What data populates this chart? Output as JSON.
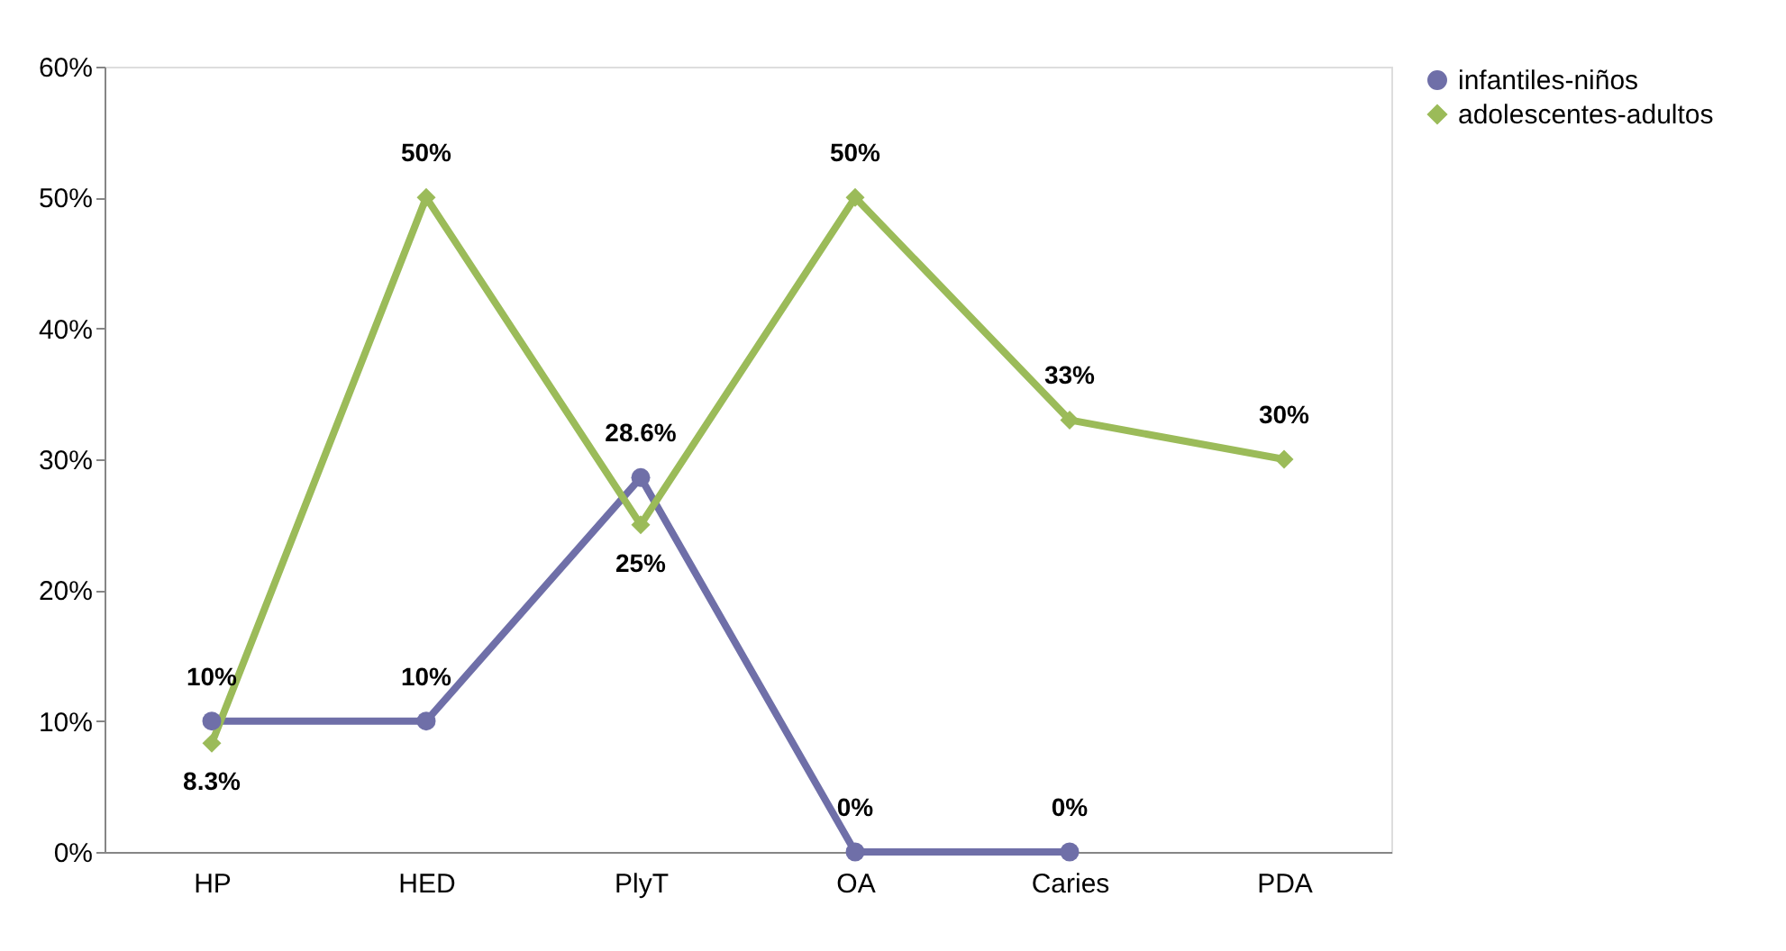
{
  "chart_data": {
    "type": "line",
    "categories": [
      "HP",
      "HED",
      "PlyT",
      "OA",
      "Caries",
      "PDA"
    ],
    "ylim": [
      0,
      60
    ],
    "yticks": [
      {
        "value": 0,
        "label": "0%"
      },
      {
        "value": 10,
        "label": "10%"
      },
      {
        "value": 20,
        "label": "20%"
      },
      {
        "value": 30,
        "label": "30%"
      },
      {
        "value": 40,
        "label": "40%"
      },
      {
        "value": 50,
        "label": "50%"
      },
      {
        "value": 60,
        "label": "60%"
      }
    ],
    "grid": false,
    "legend": "right",
    "line_style": "solid",
    "series": [
      {
        "name": "infantiles-niños",
        "color": "#6f6fa8",
        "marker": "circle",
        "values": [
          10,
          10,
          28.6,
          0,
          0,
          null
        ],
        "value_labels": [
          "10%",
          "10%",
          "28.6%",
          "0%",
          "0%",
          null
        ]
      },
      {
        "name": "adolescentes-adultos",
        "color": "#9bbb59",
        "marker": "diamond",
        "values": [
          8.3,
          50,
          25,
          50,
          33,
          30
        ],
        "value_labels": [
          "8.3%",
          "50%",
          "25%",
          "50%",
          "33%",
          "30%"
        ]
      }
    ]
  }
}
